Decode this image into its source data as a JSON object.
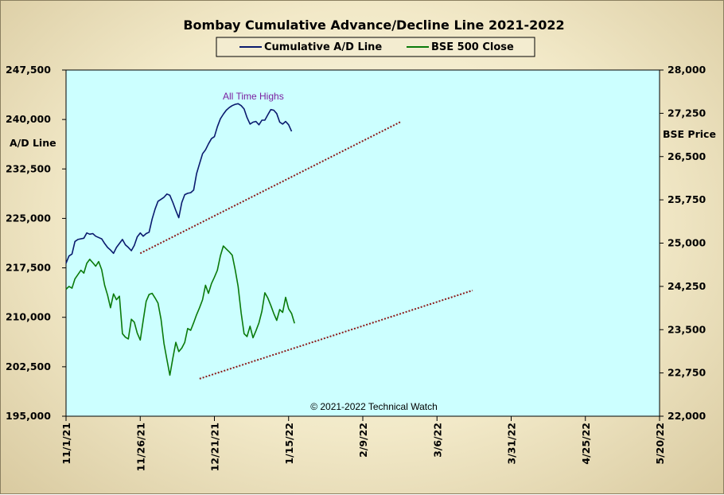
{
  "chart_data": {
    "type": "line",
    "title": "Bombay Cumulative Advance/Decline Line 2021-2022",
    "ylabel_left": "A/D Line",
    "ylabel_right": "BSE Price",
    "annotation": "All Time Highs",
    "copyright": "© 2021-2022 Technical Watch",
    "y_left": {
      "min": 195000,
      "max": 247500,
      "ticks": [
        "195,000",
        "202,500",
        "210,000",
        "217,500",
        "225,000",
        "232,500",
        "240,000",
        "247,500"
      ]
    },
    "y_right": {
      "min": 22000,
      "max": 28000,
      "ticks": [
        "22,000",
        "22,750",
        "23,500",
        "24,250",
        "25,000",
        "25,750",
        "26,500",
        "27,250",
        "28,000"
      ]
    },
    "x_labels": [
      "11/1/21",
      "11/26/21",
      "12/21/21",
      "1/15/22",
      "2/9/22",
      "3/6/22",
      "3/31/22",
      "4/25/22",
      "5/20/22"
    ],
    "x_days_total": 200,
    "legend": [
      {
        "name": "Cumulative A/D Line",
        "color": "#0a1a6e"
      },
      {
        "name": "BSE 500 Close",
        "color": "#0a7a0a"
      }
    ],
    "colors": {
      "plot_bg": "#ccffff",
      "trend": "#8b1a1a",
      "annotation": "#7a1fa0"
    },
    "series": [
      {
        "name": "Cumulative A/D Line",
        "axis": "left",
        "color": "#0a1a6e",
        "points": [
          [
            0,
            218200
          ],
          [
            1,
            219300
          ],
          [
            2,
            219600
          ],
          [
            3,
            221500
          ],
          [
            4,
            221800
          ],
          [
            6,
            222000
          ],
          [
            7,
            222800
          ],
          [
            8,
            222600
          ],
          [
            9,
            222700
          ],
          [
            10,
            222300
          ],
          [
            12,
            221900
          ],
          [
            13,
            221200
          ],
          [
            14,
            220600
          ],
          [
            15,
            220200
          ],
          [
            16,
            219700
          ],
          [
            17,
            220600
          ],
          [
            19,
            221800
          ],
          [
            20,
            221000
          ],
          [
            21,
            220600
          ],
          [
            22,
            220100
          ],
          [
            23,
            220900
          ],
          [
            24,
            222200
          ],
          [
            25,
            222800
          ],
          [
            26,
            222300
          ],
          [
            27,
            222700
          ],
          [
            28,
            222900
          ],
          [
            29,
            224900
          ],
          [
            30,
            226400
          ],
          [
            31,
            227600
          ],
          [
            32,
            227900
          ],
          [
            33,
            228200
          ],
          [
            34,
            228700
          ],
          [
            35,
            228500
          ],
          [
            36,
            227400
          ],
          [
            37,
            226200
          ],
          [
            38,
            225100
          ],
          [
            39,
            227400
          ],
          [
            40,
            228600
          ],
          [
            41,
            228800
          ],
          [
            42,
            228900
          ],
          [
            43,
            229300
          ],
          [
            44,
            231800
          ],
          [
            45,
            233300
          ],
          [
            46,
            234800
          ],
          [
            47,
            235400
          ],
          [
            48,
            236300
          ],
          [
            49,
            237100
          ],
          [
            50,
            237400
          ],
          [
            51,
            238900
          ],
          [
            52,
            240100
          ],
          [
            53,
            240800
          ],
          [
            54,
            241400
          ],
          [
            55,
            241800
          ],
          [
            56,
            242100
          ],
          [
            57,
            242300
          ],
          [
            58,
            242400
          ],
          [
            59,
            242100
          ],
          [
            60,
            241600
          ],
          [
            61,
            240300
          ],
          [
            62,
            239300
          ],
          [
            63,
            239600
          ],
          [
            64,
            239700
          ],
          [
            65,
            239200
          ],
          [
            66,
            239900
          ],
          [
            67,
            239900
          ],
          [
            68,
            240700
          ],
          [
            69,
            241500
          ],
          [
            70,
            241400
          ],
          [
            71,
            240900
          ],
          [
            72,
            239600
          ],
          [
            73,
            239300
          ],
          [
            74,
            239700
          ],
          [
            75,
            239200
          ],
          [
            76,
            238200
          ]
        ]
      },
      {
        "name": "BSE 500 Close",
        "axis": "right",
        "color": "#0a7a0a",
        "points": [
          [
            0,
            24200
          ],
          [
            1,
            24250
          ],
          [
            2,
            24220
          ],
          [
            3,
            24380
          ],
          [
            5,
            24530
          ],
          [
            6,
            24480
          ],
          [
            7,
            24650
          ],
          [
            8,
            24720
          ],
          [
            9,
            24660
          ],
          [
            10,
            24600
          ],
          [
            11,
            24680
          ],
          [
            12,
            24540
          ],
          [
            13,
            24270
          ],
          [
            14,
            24100
          ],
          [
            15,
            23880
          ],
          [
            16,
            24120
          ],
          [
            17,
            24020
          ],
          [
            18,
            24080
          ],
          [
            19,
            23430
          ],
          [
            20,
            23370
          ],
          [
            21,
            23340
          ],
          [
            22,
            23680
          ],
          [
            23,
            23630
          ],
          [
            24,
            23440
          ],
          [
            25,
            23320
          ],
          [
            26,
            23660
          ],
          [
            27,
            23990
          ],
          [
            28,
            24110
          ],
          [
            29,
            24130
          ],
          [
            30,
            24050
          ],
          [
            31,
            23960
          ],
          [
            32,
            23680
          ],
          [
            33,
            23260
          ],
          [
            34,
            22980
          ],
          [
            35,
            22710
          ],
          [
            36,
            23010
          ],
          [
            37,
            23280
          ],
          [
            38,
            23120
          ],
          [
            39,
            23180
          ],
          [
            40,
            23280
          ],
          [
            41,
            23520
          ],
          [
            42,
            23490
          ],
          [
            43,
            23620
          ],
          [
            44,
            23760
          ],
          [
            45,
            23880
          ],
          [
            46,
            24020
          ],
          [
            47,
            24270
          ],
          [
            48,
            24130
          ],
          [
            49,
            24300
          ],
          [
            50,
            24410
          ],
          [
            51,
            24530
          ],
          [
            52,
            24780
          ],
          [
            53,
            24950
          ],
          [
            54,
            24900
          ],
          [
            55,
            24850
          ],
          [
            56,
            24790
          ],
          [
            57,
            24540
          ],
          [
            58,
            24250
          ],
          [
            59,
            23790
          ],
          [
            60,
            23430
          ],
          [
            61,
            23380
          ],
          [
            62,
            23560
          ],
          [
            63,
            23360
          ],
          [
            64,
            23480
          ],
          [
            65,
            23620
          ],
          [
            66,
            23820
          ],
          [
            67,
            24140
          ],
          [
            68,
            24050
          ],
          [
            69,
            23920
          ],
          [
            70,
            23780
          ],
          [
            71,
            23660
          ],
          [
            72,
            23850
          ],
          [
            73,
            23800
          ],
          [
            74,
            24060
          ],
          [
            75,
            23860
          ],
          [
            76,
            23780
          ],
          [
            77,
            23610
          ]
        ]
      }
    ],
    "trendlines": [
      {
        "axis": "left",
        "from": [
          25,
          219700
        ],
        "to": [
          113,
          239700
        ]
      },
      {
        "axis": "right",
        "from": [
          45,
          22650
        ],
        "to": [
          137,
          24180
        ]
      }
    ]
  }
}
